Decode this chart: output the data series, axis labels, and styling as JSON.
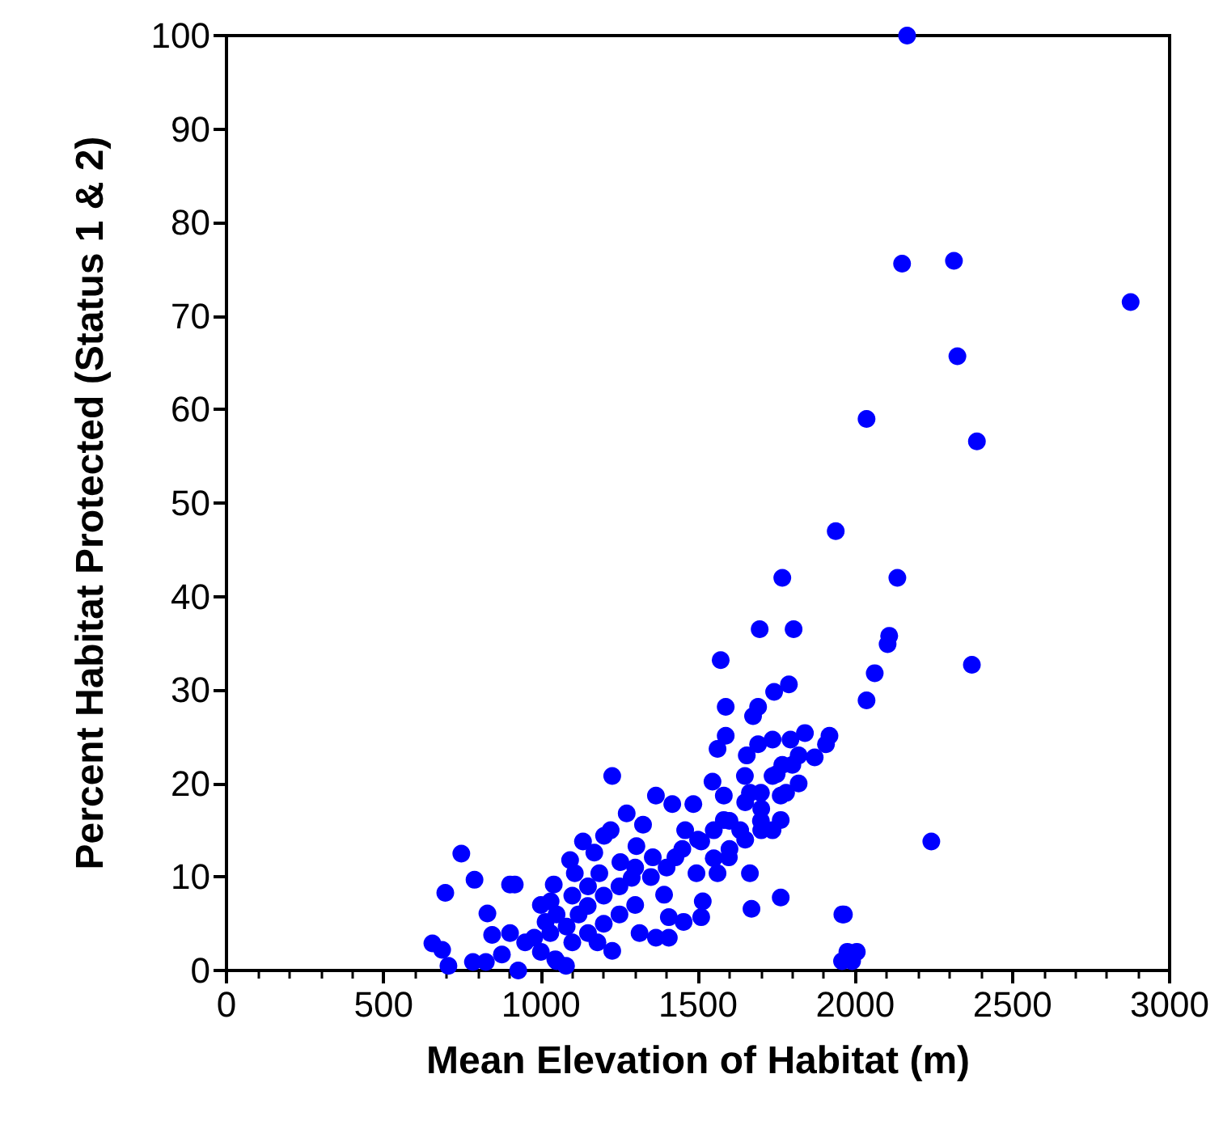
{
  "chart_data": {
    "type": "scatter",
    "xlabel": "Mean Elevation of Habitat (m)",
    "ylabel": "Percent Habitat Protected (Status 1 & 2)",
    "xlim": [
      0,
      3000
    ],
    "xticks": [
      0,
      500,
      1000,
      1500,
      2000,
      2500,
      3000
    ],
    "ylim": [
      0,
      100
    ],
    "yticks": [
      0,
      10,
      20,
      30,
      40,
      50,
      60,
      70,
      80,
      90,
      100
    ],
    "grid": false,
    "marker": "circle",
    "series": [
      {
        "color": "#0000ff",
        "x": [
          2165,
          2149,
          2314,
          2876,
          2325,
          2387,
          2036,
          1938,
          2134,
          1768,
          2371,
          2108,
          2103,
          2062,
          2036,
          1572,
          1696,
          1804,
          2242,
          1964,
          1958,
          1975,
          1990,
          2005,
          655,
          686,
          706,
          696,
          747,
          789,
          830,
          784,
          825,
          845,
          902,
          917,
          902,
          876,
          928,
          979,
          1015,
          1031,
          1041,
          1046,
          1082,
          1093,
          1108,
          1134,
          1149,
          1170,
          1186,
          1201,
          1222,
          1227,
          1227,
          1273,
          1253,
          1289,
          1304,
          1314,
          1325,
          1366,
          1356,
          1366,
          1392,
          1407,
          1418,
          1428,
          1454,
          1459,
          1485,
          1495,
          1510,
          1515,
          1546,
          1562,
          1582,
          1582,
          1588,
          1588,
          1598,
          1562,
          1634,
          1649,
          1655,
          1665,
          1670,
          1675,
          1691,
          1691,
          1701,
          1701,
          1737,
          1737,
          1742,
          1763,
          1763,
          1763,
          1768,
          1789,
          1794,
          1820,
          1840,
          1871,
          1907,
          1918,
          1959,
          1737,
          1665,
          1510,
          1407,
          1000,
          1050,
          1100,
          1150,
          1200,
          1250,
          1050,
          1100,
          1000,
          1150,
          1200,
          1300,
          1350,
          950,
          1080,
          1030,
          1120,
          1180,
          1250,
          1300,
          1400,
          1450,
          1500,
          1550,
          1600,
          1650,
          1700,
          1750,
          1800,
          1650,
          1600,
          1550,
          1700,
          1780,
          1820
        ],
        "values": [
          100,
          75.6,
          75.9,
          71.5,
          65.7,
          56.6,
          59,
          47,
          42,
          42,
          32.7,
          35.8,
          34.9,
          31.8,
          28.9,
          33.2,
          36.5,
          36.5,
          13.8,
          6,
          1,
          2,
          1,
          2,
          2.9,
          2.2,
          0.5,
          8.3,
          12.5,
          9.7,
          6.1,
          0.9,
          0.9,
          3.8,
          9.2,
          9.2,
          4,
          1.7,
          0,
          3.5,
          5.2,
          7.4,
          9.2,
          1.2,
          4.7,
          11.8,
          10.4,
          13.8,
          6.9,
          12.6,
          10.4,
          14.4,
          15,
          20.8,
          2.1,
          16.8,
          11.6,
          9.9,
          13.3,
          4,
          15.6,
          18.7,
          12.1,
          3.5,
          8.1,
          3.5,
          17.8,
          12.1,
          5.2,
          15,
          17.8,
          10.4,
          13.8,
          7.4,
          20.2,
          23.7,
          18.7,
          16.1,
          25.1,
          28.2,
          12.1,
          10.4,
          15,
          20.8,
          23,
          10.4,
          6.6,
          27.2,
          28.2,
          24.2,
          17.3,
          15,
          24.7,
          20.8,
          29.8,
          18.7,
          16.1,
          7.8,
          22,
          30.6,
          24.7,
          23,
          25.4,
          22.8,
          24.2,
          25.1,
          6,
          15,
          19,
          5.7,
          5.7,
          2,
          1,
          3,
          4,
          5,
          6,
          6,
          8,
          7,
          9,
          8,
          7,
          10,
          3,
          0.5,
          4,
          6,
          3,
          9,
          11,
          11,
          13,
          14,
          15,
          16,
          18,
          19,
          21,
          22,
          14,
          13,
          12,
          16,
          19,
          20
        ]
      }
    ]
  }
}
